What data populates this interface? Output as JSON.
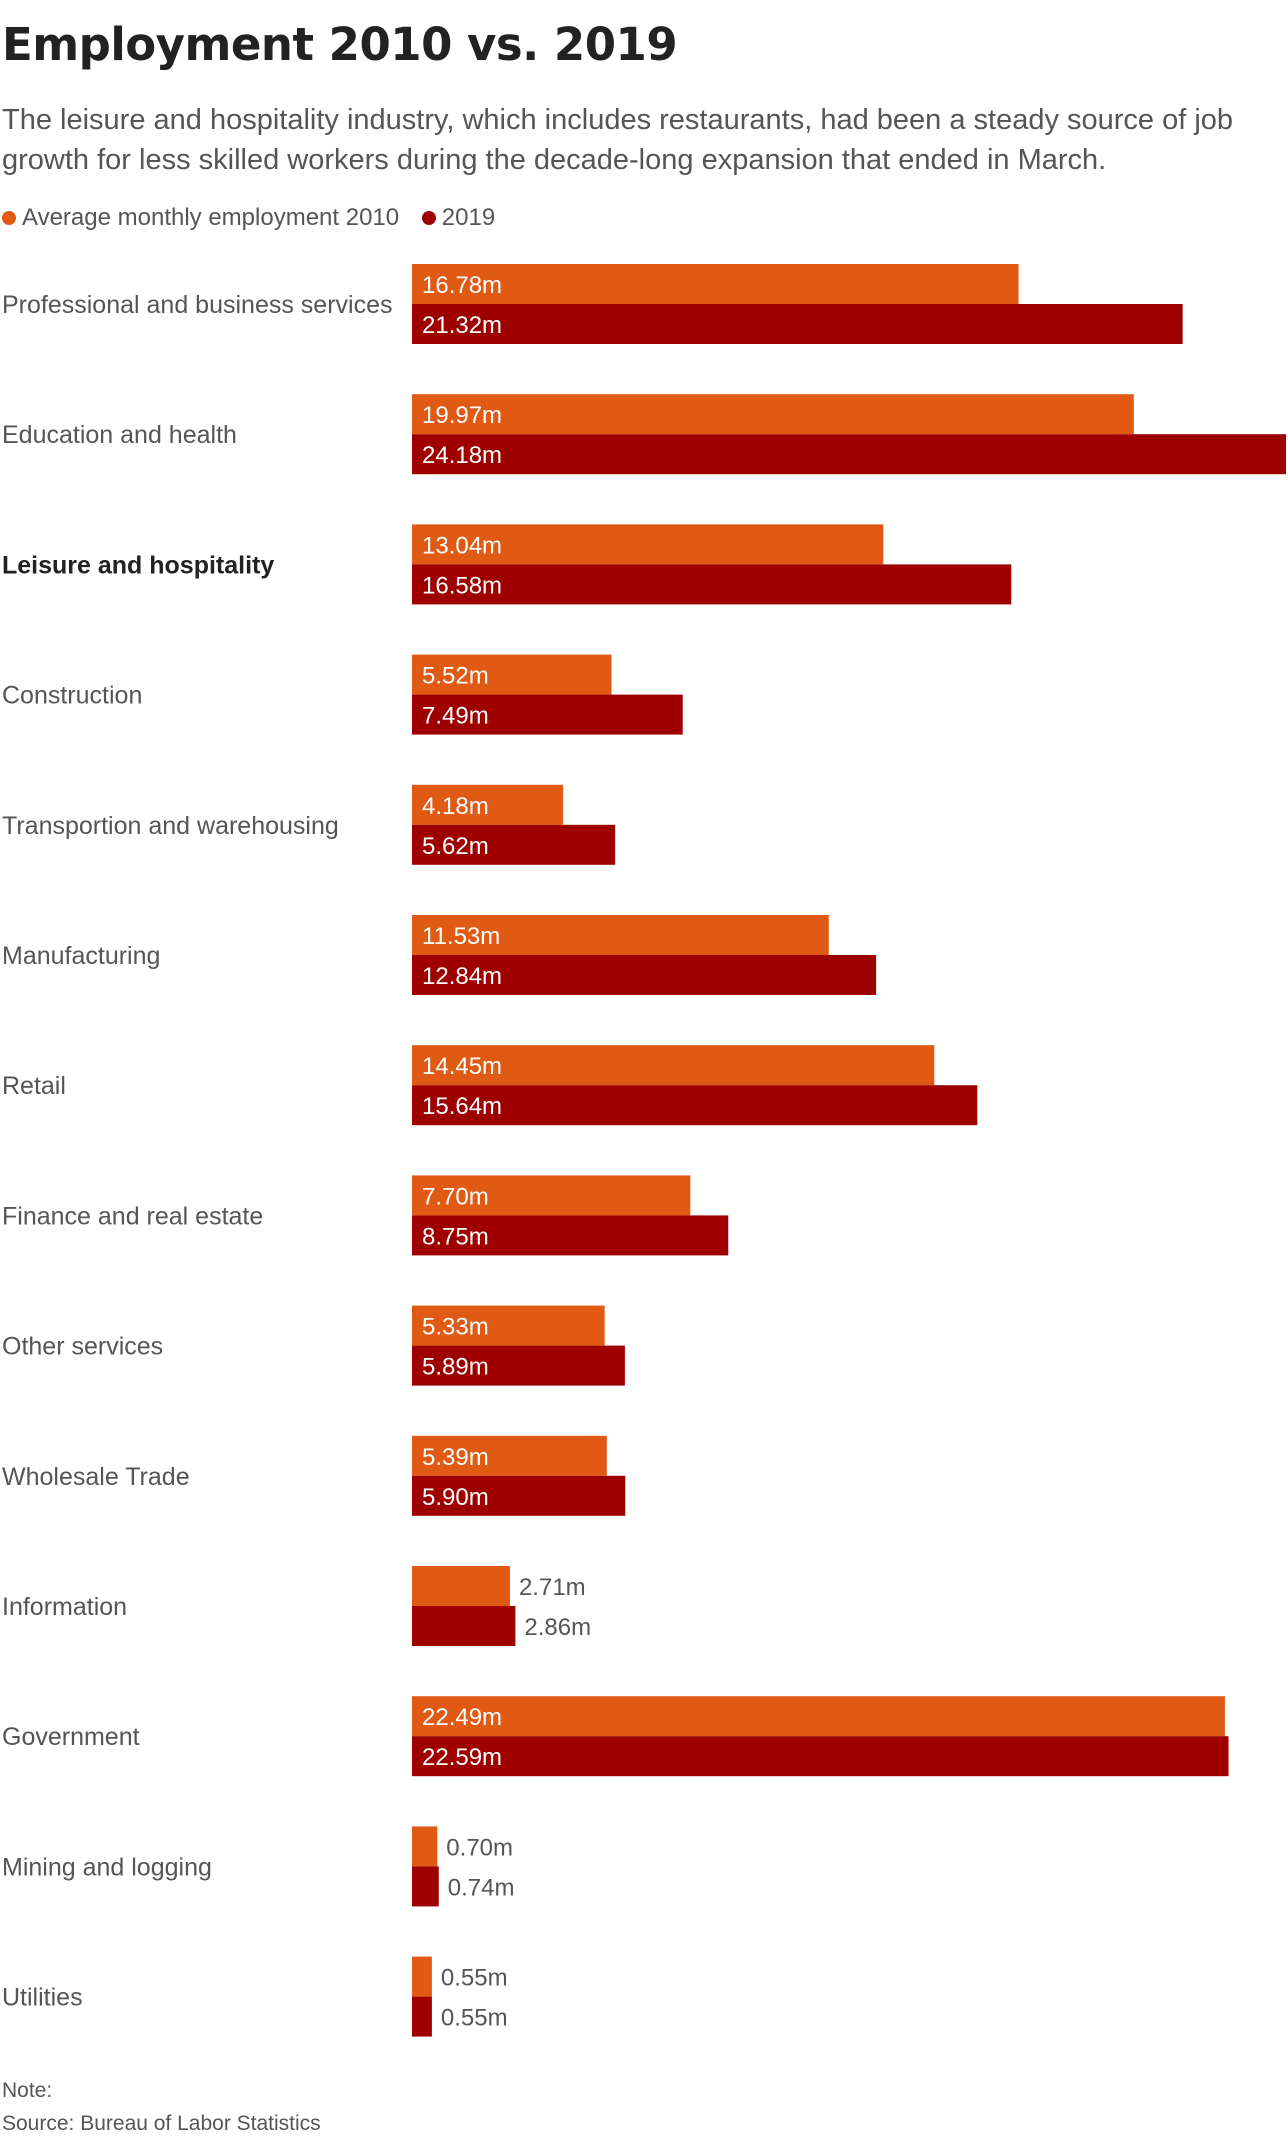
{
  "title": "Employment 2010 vs. 2019",
  "subtitle": "The leisure and hospitality industry, which includes restaurants, had been a steady source of job growth for less skilled workers during the decade-long expansion that ended in March.",
  "legend": [
    {
      "label": "Average monthly employment 2010",
      "color": "#e05a14"
    },
    {
      "label": "2019",
      "color": "#9e0000"
    }
  ],
  "footer": {
    "note": "Note:",
    "source": "Source: Bureau of Labor Statistics"
  },
  "chart_data": {
    "type": "bar",
    "orientation": "horizontal",
    "unit_suffix": "m",
    "xlim": [
      0,
      24.18
    ],
    "grid": false,
    "legend_position": "top-left",
    "highlighted_category": "Leisure and hospitality",
    "categories": [
      "Professional and business services",
      "Education and health",
      "Leisure and hospitality",
      "Construction",
      "Transportion and warehousing",
      "Manufacturing",
      "Retail",
      "Finance and real estate",
      "Other services",
      "Wholesale Trade",
      "Information",
      "Government",
      "Mining and logging",
      "Utilities"
    ],
    "series": [
      {
        "name": "Average monthly employment 2010",
        "color": "#e05a14",
        "values": [
          16.78,
          19.97,
          13.04,
          5.52,
          4.18,
          11.53,
          14.45,
          7.7,
          5.33,
          5.39,
          2.71,
          22.49,
          0.7,
          0.55
        ],
        "labels": [
          "16.78m",
          "19.97m",
          "13.04m",
          "5.52m",
          "4.18m",
          "11.53m",
          "14.45m",
          "7.70m",
          "5.33m",
          "5.39m",
          "2.71m",
          "22.49m",
          "0.70m",
          "0.55m"
        ]
      },
      {
        "name": "2019",
        "color": "#9e0000",
        "values": [
          21.32,
          24.18,
          16.58,
          7.49,
          5.62,
          12.84,
          15.64,
          8.75,
          5.89,
          5.9,
          2.86,
          22.59,
          0.74,
          0.55
        ],
        "labels": [
          "21.32m",
          "24.18m",
          "16.58m",
          "7.49m",
          "5.62m",
          "12.84m",
          "15.64m",
          "8.75m",
          "5.89m",
          "5.90m",
          "2.86m",
          "22.59m",
          "0.74m",
          "0.55m"
        ]
      }
    ]
  }
}
